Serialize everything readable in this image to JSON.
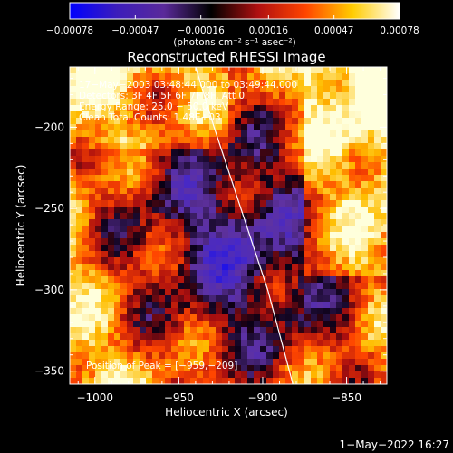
{
  "chart_data": {
    "type": "heatmap",
    "title": "Reconstructed RHESSI Image",
    "xlabel": "Heliocentric X (arcsec)",
    "ylabel": "Heliocentric Y (arcsec)",
    "xlim": [
      -1015,
      -826
    ],
    "ylim": [
      -358,
      -163
    ],
    "x_ticks": [
      -1000,
      -950,
      -900,
      -850
    ],
    "x_tick_labels": [
      "−1000",
      "−950",
      "−900",
      "−850"
    ],
    "y_ticks": [
      -200,
      -250,
      -300,
      -350
    ],
    "y_tick_labels": [
      "−200",
      "−250",
      "−300",
      "−350"
    ],
    "grid": false,
    "annotations": [
      "17−May−2003 03:48:44.000 to 03:49:44.000",
      "Detectors: 3F 4F 5F 6F 7F 8F, Att 0",
      "Energy Range: 25.0 − 50.0 keV",
      "Clean    Total Counts: 1.48E+03"
    ],
    "peak_label": "Position of Peak = [−959,−209]",
    "limb_curve": {
      "x": [
        -940,
        -929,
        -913,
        -897,
        -882
      ],
      "y": [
        -163,
        -200,
        -250,
        -300,
        -358
      ]
    },
    "colorbar": {
      "range": [
        -0.00078,
        0.00078
      ],
      "tick_labels": [
        "−0.00078",
        "−0.00047",
        "−0.00016",
        "0.00016",
        "0.00047",
        "0.00078"
      ],
      "unit_label": "(photons cm⁻² s⁻¹ asec⁻²)",
      "stops": [
        "#0000ff",
        "#3c1dbb",
        "#5a2a9a",
        "#000000",
        "#b01010",
        "#ff4400",
        "#ffcc00",
        "#ffffff"
      ]
    }
  },
  "footer": {
    "datetime": "1−May−2022 16:27"
  }
}
